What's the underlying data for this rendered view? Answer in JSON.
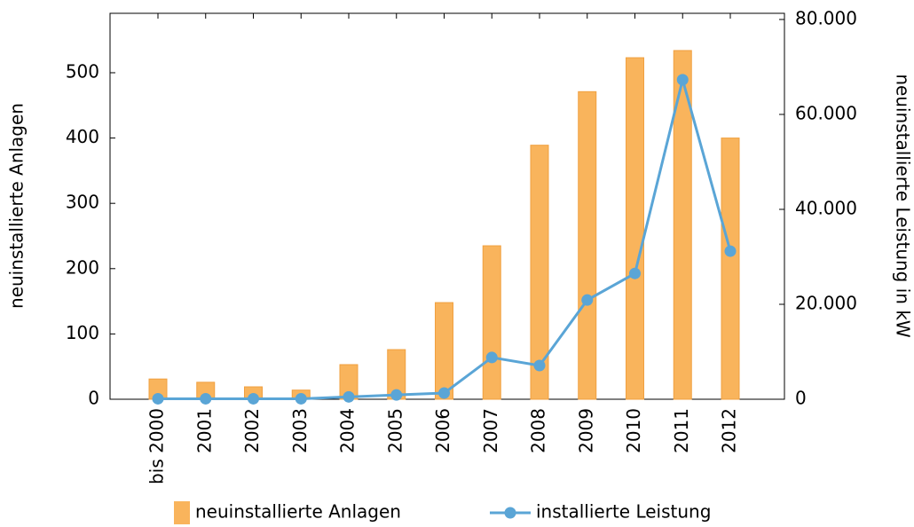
{
  "chart_data": {
    "type": "bar",
    "ylabel": "neuinstallierte Anlagen",
    "y2label": "neuinstallierte Leistung in kW",
    "categories": [
      "bis 2000",
      "2001",
      "2002",
      "2003",
      "2004",
      "2005",
      "2006",
      "2007",
      "2008",
      "2009",
      "2010",
      "2011",
      "2012"
    ],
    "series": [
      {
        "name": "neuinstallierte Anlagen",
        "type": "bar",
        "color": "#f9b45c",
        "values": [
          31,
          26,
          19,
          14,
          53,
          76,
          148,
          235,
          389,
          471,
          523,
          534,
          400
        ]
      },
      {
        "name": "installierte Leistung",
        "type": "line",
        "axis": "y2",
        "color": "#5aa5d6",
        "values": [
          100,
          100,
          100,
          100,
          500,
          900,
          1300,
          8800,
          7100,
          20900,
          26500,
          67300,
          31200
        ]
      }
    ],
    "ylim": [
      0,
      591
    ],
    "yticks": [
      0,
      100,
      200,
      300,
      400,
      500
    ],
    "y2lim": [
      0,
      81300
    ],
    "y2ticks": [
      0,
      {
        "value": 20000,
        "label": "20.000"
      },
      {
        "value": 40000,
        "label": "40.000"
      },
      {
        "value": 60000,
        "label": "60.000"
      },
      {
        "value": 80000,
        "label": "80.000"
      }
    ],
    "legend": "bottom"
  }
}
